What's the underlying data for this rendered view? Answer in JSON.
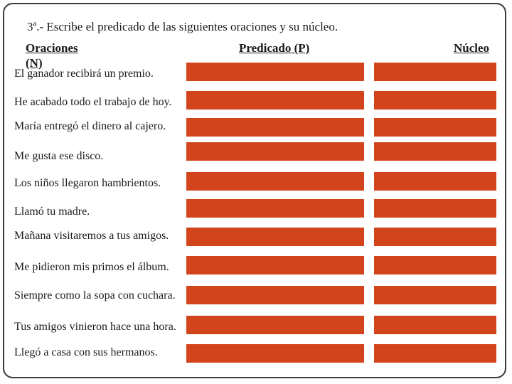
{
  "title": "3ª.- Escribe el predicado de las siguientes oraciones y su núcleo.",
  "headers": {
    "oraciones": "Oraciones",
    "oraciones_sub": "(N)",
    "predicado": "Predicado (P)",
    "nucleo": "Núcleo"
  },
  "fill_color": "#d2451c",
  "sentences": [
    "El ganador recibirá un premio.",
    "He acabado todo el trabajo de hoy.",
    "María entregó el dinero al cajero.",
    "Me gusta ese disco.",
    "Los niños llegaron hambrientos.",
    "Llamó tu madre.",
    "Mañana visitaremos a tus amigos.",
    "Me pidieron mis primos el álbum.",
    "Siempre como la sopa con cuchara.",
    "Tus amigos vinieron hace una hora.",
    "Llegó a casa con sus hermanos."
  ]
}
